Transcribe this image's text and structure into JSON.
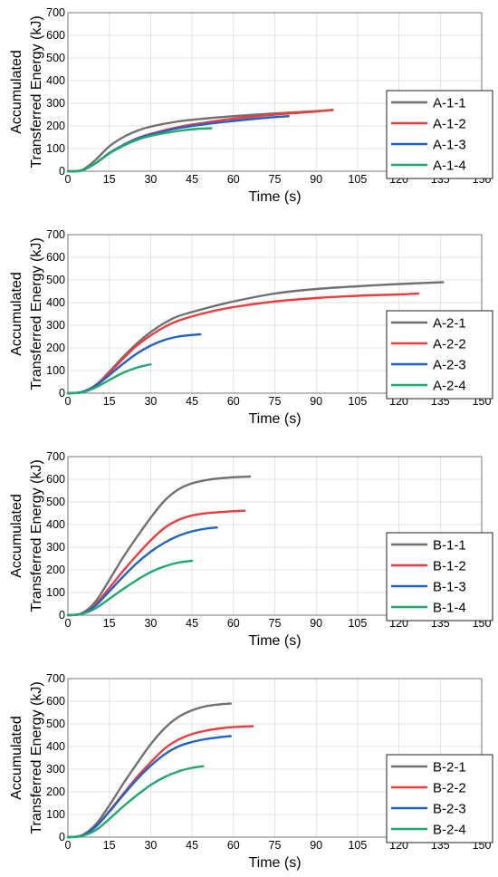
{
  "colors": {
    "series_1": "#707070",
    "series_2": "#ef3b3b",
    "series_3": "#1f63c9",
    "series_4": "#1daa6c"
  },
  "chart_data": [
    {
      "type": "line",
      "xlabel": "Time (s)",
      "ylabel": [
        "Accumulated",
        "Transferred Energy (kJ)"
      ],
      "xlim": [
        0,
        150
      ],
      "ylim": [
        0,
        700
      ],
      "xticks": [
        "0",
        "15",
        "30",
        "45",
        "60",
        "75",
        "90",
        "105",
        "120",
        "135",
        "150"
      ],
      "yticks": [
        "0",
        "100",
        "200",
        "300",
        "400",
        "500",
        "600",
        "700"
      ],
      "grid": true,
      "legend_position": "right",
      "series": [
        {
          "name": "A-1-1",
          "color_key": "series_1",
          "x": [
            0,
            5,
            10,
            15,
            20,
            25,
            30,
            40,
            50,
            60,
            75,
            90,
            96
          ],
          "y": [
            0,
            5,
            50,
            110,
            150,
            178,
            197,
            220,
            233,
            243,
            255,
            265,
            270
          ]
        },
        {
          "name": "A-1-2",
          "color_key": "series_2",
          "x": [
            0,
            5,
            10,
            15,
            20,
            25,
            30,
            40,
            50,
            60,
            75,
            90,
            96
          ],
          "y": [
            0,
            3,
            35,
            80,
            115,
            145,
            165,
            195,
            215,
            232,
            250,
            264,
            271
          ]
        },
        {
          "name": "A-1-3",
          "color_key": "series_3",
          "x": [
            0,
            5,
            10,
            15,
            20,
            25,
            30,
            40,
            50,
            60,
            70,
            80
          ],
          "y": [
            0,
            3,
            35,
            80,
            115,
            143,
            162,
            190,
            208,
            222,
            234,
            243
          ]
        },
        {
          "name": "A-1-4",
          "color_key": "series_4",
          "x": [
            0,
            5,
            10,
            15,
            20,
            25,
            30,
            40,
            46,
            52
          ],
          "y": [
            0,
            3,
            35,
            78,
            112,
            138,
            156,
            178,
            186,
            190
          ]
        }
      ]
    },
    {
      "type": "line",
      "xlabel": "Time (s)",
      "ylabel": [
        "Accumulated",
        "Transferred Energy (kJ)"
      ],
      "xlim": [
        0,
        150
      ],
      "ylim": [
        0,
        700
      ],
      "xticks": [
        "0",
        "15",
        "30",
        "45",
        "60",
        "75",
        "90",
        "105",
        "120",
        "135",
        "150"
      ],
      "yticks": [
        "0",
        "100",
        "200",
        "300",
        "400",
        "500",
        "600",
        "700"
      ],
      "grid": true,
      "legend_position": "right",
      "series": [
        {
          "name": "A-2-1",
          "color_key": "series_1",
          "x": [
            0,
            5,
            10,
            15,
            20,
            25,
            30,
            35,
            40,
            50,
            60,
            75,
            90,
            105,
            120,
            136
          ],
          "y": [
            0,
            5,
            35,
            95,
            160,
            220,
            270,
            310,
            340,
            375,
            405,
            440,
            460,
            472,
            482,
            490
          ]
        },
        {
          "name": "A-2-2",
          "color_key": "series_2",
          "x": [
            0,
            5,
            10,
            15,
            20,
            25,
            30,
            35,
            40,
            50,
            60,
            75,
            90,
            105,
            120,
            127
          ],
          "y": [
            0,
            5,
            35,
            90,
            152,
            210,
            255,
            292,
            320,
            355,
            380,
            405,
            420,
            430,
            436,
            440
          ]
        },
        {
          "name": "A-2-3",
          "color_key": "series_3",
          "x": [
            0,
            5,
            10,
            15,
            20,
            25,
            30,
            35,
            40,
            45,
            48
          ],
          "y": [
            0,
            5,
            33,
            80,
            130,
            175,
            210,
            235,
            250,
            257,
            260
          ]
        },
        {
          "name": "A-2-4",
          "color_key": "series_4",
          "x": [
            0,
            5,
            10,
            15,
            20,
            25,
            28,
            30
          ],
          "y": [
            0,
            3,
            25,
            58,
            90,
            113,
            122,
            127
          ]
        }
      ]
    },
    {
      "type": "line",
      "xlabel": "Time (s)",
      "ylabel": [
        "Accumulated",
        "Transferred Energy (kJ)"
      ],
      "xlim": [
        0,
        150
      ],
      "ylim": [
        0,
        700
      ],
      "xticks": [
        "0",
        "15",
        "30",
        "45",
        "60",
        "75",
        "90",
        "105",
        "120",
        "135",
        "150"
      ],
      "yticks": [
        "0",
        "100",
        "200",
        "300",
        "400",
        "500",
        "600",
        "700"
      ],
      "grid": true,
      "legend_position": "right",
      "series": [
        {
          "name": "B-1-1",
          "color_key": "series_1",
          "x": [
            0,
            5,
            10,
            15,
            20,
            25,
            30,
            35,
            40,
            45,
            50,
            55,
            60,
            66
          ],
          "y": [
            0,
            8,
            60,
            155,
            255,
            345,
            430,
            505,
            555,
            582,
            596,
            604,
            609,
            612
          ]
        },
        {
          "name": "B-1-2",
          "color_key": "series_2",
          "x": [
            0,
            5,
            10,
            15,
            20,
            25,
            30,
            35,
            40,
            45,
            50,
            55,
            60,
            64
          ],
          "y": [
            0,
            6,
            48,
            120,
            195,
            265,
            330,
            385,
            420,
            440,
            450,
            455,
            459,
            461
          ]
        },
        {
          "name": "B-1-3",
          "color_key": "series_3",
          "x": [
            0,
            5,
            10,
            15,
            20,
            25,
            30,
            35,
            40,
            45,
            50,
            54
          ],
          "y": [
            0,
            6,
            42,
            105,
            170,
            230,
            280,
            320,
            350,
            370,
            382,
            387
          ]
        },
        {
          "name": "B-1-4",
          "color_key": "series_4",
          "x": [
            0,
            5,
            10,
            15,
            20,
            25,
            30,
            35,
            40,
            45
          ],
          "y": [
            0,
            5,
            30,
            72,
            115,
            155,
            190,
            215,
            232,
            240
          ]
        }
      ]
    },
    {
      "type": "line",
      "xlabel": "Time (s)",
      "ylabel": [
        "Accumulated",
        "Transferred Energy (kJ)"
      ],
      "xlim": [
        0,
        150
      ],
      "ylim": [
        0,
        700
      ],
      "xticks": [
        "0",
        "15",
        "30",
        "45",
        "60",
        "75",
        "90",
        "105",
        "120",
        "135",
        "150"
      ],
      "yticks": [
        "0",
        "100",
        "200",
        "300",
        "400",
        "500",
        "600",
        "700"
      ],
      "grid": true,
      "legend_position": "right",
      "series": [
        {
          "name": "B-2-1",
          "color_key": "series_1",
          "x": [
            0,
            5,
            10,
            15,
            20,
            25,
            30,
            35,
            40,
            45,
            50,
            55,
            59
          ],
          "y": [
            0,
            8,
            55,
            140,
            235,
            325,
            410,
            480,
            530,
            560,
            578,
            586,
            590
          ]
        },
        {
          "name": "B-2-2",
          "color_key": "series_2",
          "x": [
            0,
            5,
            10,
            15,
            20,
            25,
            30,
            35,
            40,
            45,
            50,
            55,
            60,
            67
          ],
          "y": [
            0,
            6,
            45,
            115,
            190,
            265,
            330,
            390,
            430,
            455,
            470,
            480,
            486,
            490
          ]
        },
        {
          "name": "B-2-3",
          "color_key": "series_3",
          "x": [
            0,
            5,
            10,
            15,
            20,
            25,
            30,
            35,
            40,
            45,
            50,
            55,
            59
          ],
          "y": [
            0,
            6,
            45,
            112,
            185,
            255,
            315,
            365,
            400,
            420,
            433,
            441,
            446
          ]
        },
        {
          "name": "B-2-4",
          "color_key": "series_4",
          "x": [
            0,
            5,
            10,
            15,
            20,
            25,
            30,
            35,
            40,
            45,
            49
          ],
          "y": [
            0,
            5,
            30,
            80,
            135,
            185,
            230,
            265,
            290,
            306,
            313
          ]
        }
      ]
    }
  ]
}
